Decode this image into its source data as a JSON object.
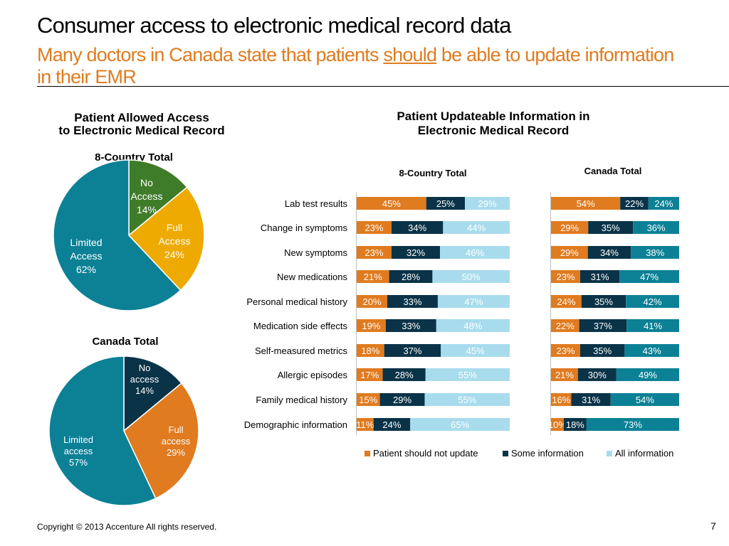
{
  "header": {
    "title": "Consumer access to electronic medical record data",
    "subtitle_before": "Many doctors in Canada state that patients ",
    "subtitle_emphasis": "should",
    "subtitle_after": " be able to update information in their EMR"
  },
  "left_panel": {
    "title_line1": "Patient Allowed Access",
    "title_line2": "to Electronic Medical Record"
  },
  "right_panel": {
    "title_line1": "Patient Updateable Information in",
    "title_line2": "Electronic Medical Record"
  },
  "footer": {
    "copyright": "Copyright © 2013 Accenture  All rights reserved.",
    "page": "7"
  },
  "colors": {
    "no_access_green": "#3f7c2a",
    "full_access_gold": "#eeaa00",
    "limited_teal": "#0c8196",
    "no_access_navy": "#0a3348",
    "full_access_orange": "#e07b1f",
    "orange": "#e07b1f",
    "navy": "#0a3348",
    "light_blue": "#a8dced",
    "teal": "#0c8196"
  },
  "chart_data": [
    {
      "type": "pie",
      "title": "8-Country Total",
      "slices": [
        {
          "label": "No Access",
          "value": 14
        },
        {
          "label": "Full Access",
          "value": 24
        },
        {
          "label": "Limited Access",
          "value": 62
        }
      ]
    },
    {
      "type": "pie",
      "title": "Canada Total",
      "slices": [
        {
          "label": "No access",
          "value": 14
        },
        {
          "label": "Full access",
          "value": 29
        },
        {
          "label": "Limited access",
          "value": 57
        }
      ]
    },
    {
      "type": "bar",
      "orientation": "horizontal",
      "stacked": true,
      "title": "8-Country Total",
      "categories": [
        "Lab test results",
        "Change in symptoms",
        "New symptoms",
        "New medications",
        "Personal medical history",
        "Medication side effects",
        "Self-measured metrics",
        "Allergic episodes",
        "Family medical history",
        "Demographic information"
      ],
      "series": [
        {
          "name": "Patient should not update",
          "values": [
            45,
            23,
            23,
            21,
            20,
            19,
            18,
            17,
            15,
            11
          ]
        },
        {
          "name": "Some information",
          "values": [
            25,
            34,
            32,
            28,
            33,
            33,
            37,
            28,
            29,
            24
          ]
        },
        {
          "name": "All information",
          "values": [
            29,
            44,
            46,
            50,
            47,
            48,
            45,
            55,
            55,
            65
          ]
        }
      ],
      "legend": "bottom"
    },
    {
      "type": "bar",
      "orientation": "horizontal",
      "stacked": true,
      "title": "Canada Total",
      "categories": [
        "Lab test results",
        "Change in symptoms",
        "New symptoms",
        "New medications",
        "Personal medical history",
        "Medication side effects",
        "Self-measured metrics",
        "Allergic episodes",
        "Family medical history",
        "Demographic information"
      ],
      "series": [
        {
          "name": "Patient should not update",
          "values": [
            54,
            29,
            29,
            23,
            24,
            22,
            23,
            21,
            16,
            10
          ]
        },
        {
          "name": "Some information",
          "values": [
            22,
            35,
            34,
            31,
            35,
            37,
            35,
            30,
            31,
            18
          ]
        },
        {
          "name": "All information",
          "values": [
            24,
            36,
            38,
            47,
            42,
            41,
            43,
            49,
            54,
            73
          ]
        }
      ],
      "legend": "bottom"
    }
  ]
}
